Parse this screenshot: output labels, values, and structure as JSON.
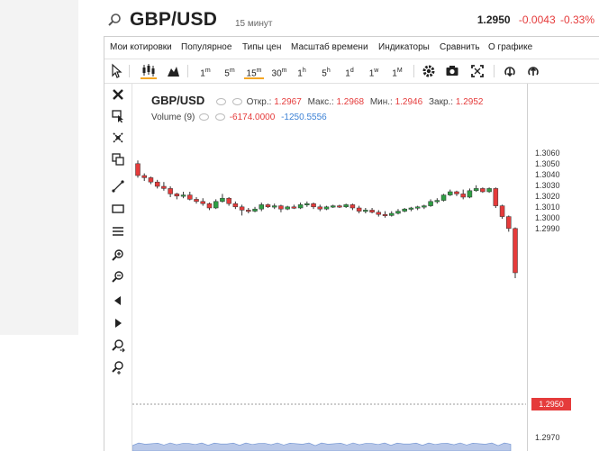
{
  "header": {
    "symbol": "GBP/USD",
    "interval": "15 минут",
    "last": "1.2950",
    "change": "-0.0043",
    "change_pct": "-0.33%"
  },
  "menu": [
    "Мои котировки",
    "Популярное",
    "Типы цен",
    "Масштаб времени",
    "Индикаторы",
    "Сравнить",
    "О графике"
  ],
  "timeframes": [
    {
      "num": "1",
      "unit": "m"
    },
    {
      "num": "5",
      "unit": "m"
    },
    {
      "num": "15",
      "unit": "m"
    },
    {
      "num": "30",
      "unit": "m"
    },
    {
      "num": "1",
      "unit": "h"
    },
    {
      "num": "5",
      "unit": "h"
    },
    {
      "num": "1",
      "unit": "d"
    },
    {
      "num": "1",
      "unit": "w"
    },
    {
      "num": "1",
      "unit": "M"
    }
  ],
  "active_timeframe": "15m",
  "legend": {
    "symbol": "GBP/USD",
    "open_label": "Откр.:",
    "open": "1.2967",
    "high_label": "Макс.:",
    "high": "1.2968",
    "low_label": "Мин.:",
    "low": "1.2946",
    "close_label": "Закр.:",
    "close": "1.2952",
    "volume_label": "Volume (9)",
    "vol1": "-6174.0000",
    "vol2": "-1250.5556"
  },
  "colors": {
    "up": "#2e9e44",
    "down": "#e53b3b",
    "accent": "#f5a623",
    "ma": "#3d82d6"
  },
  "chart_data": {
    "type": "candlestick",
    "y_ticks": [
      1.306,
      1.305,
      1.304,
      1.303,
      1.302,
      1.301,
      1.3,
      1.299,
      1.297
    ],
    "y_tick_labels": [
      "1.3060",
      "1.3050",
      "1.3040",
      "1.3030",
      "1.3020",
      "1.3010",
      "1.3000",
      "1.2990",
      "1.2970"
    ],
    "ylim": [
      1.2965,
      1.307
    ],
    "last_price": 1.295,
    "last_price_label": "1.2950",
    "candles": [
      [
        1.3051,
        1.3054,
        1.3038,
        1.304
      ],
      [
        1.304,
        1.3042,
        1.3035,
        1.3038
      ],
      [
        1.3038,
        1.3039,
        1.3032,
        1.3034
      ],
      [
        1.3034,
        1.3036,
        1.3028,
        1.303
      ],
      [
        1.303,
        1.3034,
        1.3026,
        1.3028
      ],
      [
        1.3028,
        1.303,
        1.302,
        1.3023
      ],
      [
        1.3023,
        1.3024,
        1.3018,
        1.3021
      ],
      [
        1.3021,
        1.3025,
        1.3019,
        1.3022
      ],
      [
        1.3022,
        1.3025,
        1.3017,
        1.3018
      ],
      [
        1.3018,
        1.302,
        1.3014,
        1.3016
      ],
      [
        1.3016,
        1.3019,
        1.3012,
        1.3014
      ],
      [
        1.3014,
        1.3015,
        1.3008,
        1.301
      ],
      [
        1.301,
        1.3018,
        1.3009,
        1.3016
      ],
      [
        1.3016,
        1.3023,
        1.3015,
        1.3019
      ],
      [
        1.3019,
        1.302,
        1.3012,
        1.3014
      ],
      [
        1.3014,
        1.3016,
        1.3009,
        1.3011
      ],
      [
        1.3011,
        1.3013,
        1.3003,
        1.3008
      ],
      [
        1.3008,
        1.301,
        1.3005,
        1.3007
      ],
      [
        1.3007,
        1.3011,
        1.3006,
        1.3009
      ],
      [
        1.3009,
        1.3015,
        1.3007,
        1.3013
      ],
      [
        1.3013,
        1.3014,
        1.301,
        1.3011
      ],
      [
        1.3011,
        1.3014,
        1.3009,
        1.3012
      ],
      [
        1.3012,
        1.3013,
        1.3006,
        1.3009
      ],
      [
        1.3009,
        1.3012,
        1.3008,
        1.3011
      ],
      [
        1.3011,
        1.3013,
        1.3009,
        1.301
      ],
      [
        1.301,
        1.3015,
        1.3009,
        1.3013
      ],
      [
        1.3013,
        1.3016,
        1.3011,
        1.3014
      ],
      [
        1.3014,
        1.3015,
        1.3009,
        1.3011
      ],
      [
        1.3011,
        1.3013,
        1.3007,
        1.3009
      ],
      [
        1.3009,
        1.3012,
        1.3008,
        1.3011
      ],
      [
        1.3011,
        1.3013,
        1.301,
        1.3012
      ],
      [
        1.3012,
        1.3013,
        1.301,
        1.3011
      ],
      [
        1.3011,
        1.3014,
        1.301,
        1.3013
      ],
      [
        1.3013,
        1.3014,
        1.3008,
        1.301
      ],
      [
        1.301,
        1.3012,
        1.3005,
        1.3007
      ],
      [
        1.3007,
        1.301,
        1.3005,
        1.3008
      ],
      [
        1.3008,
        1.301,
        1.3005,
        1.3006
      ],
      [
        1.3006,
        1.3008,
        1.3002,
        1.3004
      ],
      [
        1.3004,
        1.3007,
        1.3001,
        1.3003
      ],
      [
        1.3003,
        1.3007,
        1.3002,
        1.3005
      ],
      [
        1.3005,
        1.3009,
        1.3004,
        1.3007
      ],
      [
        1.3007,
        1.301,
        1.3006,
        1.3009
      ],
      [
        1.3009,
        1.3011,
        1.3007,
        1.301
      ],
      [
        1.301,
        1.3012,
        1.3008,
        1.3011
      ],
      [
        1.3011,
        1.3013,
        1.3009,
        1.3012
      ],
      [
        1.3012,
        1.3018,
        1.3011,
        1.3016
      ],
      [
        1.3016,
        1.3019,
        1.3014,
        1.3017
      ],
      [
        1.3017,
        1.3023,
        1.3016,
        1.3022
      ],
      [
        1.3022,
        1.3027,
        1.3021,
        1.3025
      ],
      [
        1.3025,
        1.3026,
        1.3021,
        1.3023
      ],
      [
        1.3023,
        1.3027,
        1.3018,
        1.302
      ],
      [
        1.302,
        1.3028,
        1.3019,
        1.3026
      ],
      [
        1.3026,
        1.3031,
        1.3025,
        1.3028
      ],
      [
        1.3028,
        1.3029,
        1.3024,
        1.3025
      ],
      [
        1.3025,
        1.3029,
        1.3024,
        1.3028
      ],
      [
        1.3028,
        1.3029,
        1.301,
        1.3012
      ],
      [
        1.3012,
        1.3013,
        1.3,
        1.3002
      ],
      [
        1.3002,
        1.3003,
        1.2988,
        1.2991
      ],
      [
        1.2991,
        1.2992,
        1.2945,
        1.295
      ]
    ]
  }
}
